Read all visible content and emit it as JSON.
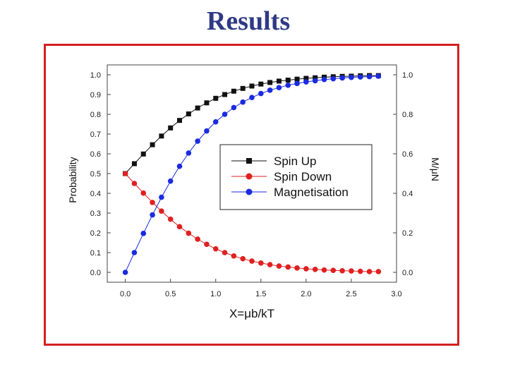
{
  "slide": {
    "title": "Results"
  },
  "chart_data": {
    "type": "scatter",
    "xlabel": "X=μb/kT",
    "ylabel_left": "Probability",
    "ylabel_right": "M/μN",
    "xlim": [
      -0.2,
      3.0
    ],
    "ylim": [
      -0.05,
      1.05
    ],
    "x_ticks": [
      "0.0",
      "0.5",
      "1.0",
      "1.5",
      "2.0",
      "2.5",
      "3.0"
    ],
    "y_ticks": [
      "0.0",
      "0.1",
      "0.2",
      "0.3",
      "0.4",
      "0.5",
      "0.6",
      "0.7",
      "0.8",
      "0.9",
      "1.0"
    ],
    "y_ticks_right": [
      "0.0",
      "0.2",
      "0.4",
      "0.6",
      "0.8",
      "1.0"
    ],
    "x": [
      0.0,
      0.1,
      0.2,
      0.3,
      0.4,
      0.5,
      0.6,
      0.7,
      0.8,
      0.9,
      1.0,
      1.1,
      1.2,
      1.3,
      1.4,
      1.5,
      1.6,
      1.7,
      1.8,
      1.9,
      2.0,
      2.1,
      2.2,
      2.3,
      2.4,
      2.5,
      2.6,
      2.7,
      2.8
    ],
    "series": [
      {
        "name": "Spin Up",
        "color": "#111111",
        "marker": "square",
        "values": [
          0.5,
          0.55,
          0.599,
          0.646,
          0.69,
          0.731,
          0.769,
          0.802,
          0.832,
          0.858,
          0.881,
          0.9,
          0.917,
          0.931,
          0.943,
          0.953,
          0.961,
          0.968,
          0.973,
          0.978,
          0.982,
          0.985,
          0.988,
          0.99,
          0.992,
          0.993,
          0.995,
          0.996,
          0.996
        ]
      },
      {
        "name": "Spin Down",
        "color": "#e02020",
        "marker": "circle",
        "values": [
          0.5,
          0.45,
          0.401,
          0.354,
          0.31,
          0.269,
          0.231,
          0.198,
          0.168,
          0.142,
          0.119,
          0.1,
          0.083,
          0.069,
          0.057,
          0.047,
          0.039,
          0.032,
          0.027,
          0.022,
          0.018,
          0.015,
          0.012,
          0.01,
          0.008,
          0.007,
          0.005,
          0.004,
          0.004
        ]
      },
      {
        "name": "Magnetisation",
        "color": "#1a2be0",
        "marker": "circle",
        "values": [
          0.0,
          0.1,
          0.197,
          0.291,
          0.38,
          0.462,
          0.537,
          0.604,
          0.664,
          0.716,
          0.762,
          0.8,
          0.834,
          0.862,
          0.885,
          0.905,
          0.922,
          0.935,
          0.947,
          0.956,
          0.964,
          0.97,
          0.976,
          0.98,
          0.984,
          0.987,
          0.989,
          0.991,
          0.993
        ]
      }
    ],
    "legend_position": "center-right"
  }
}
